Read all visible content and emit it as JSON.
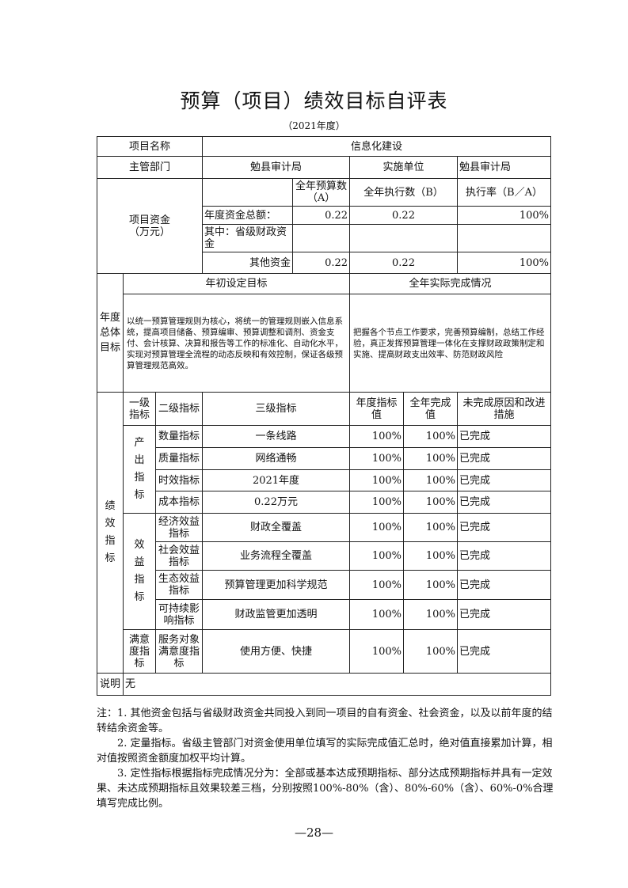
{
  "title": "预算（项目）绩效目标自评表",
  "subtitle": "（2021年度）",
  "project": {
    "name_label": "项目名称",
    "name_value": "信息化建设",
    "dept_label": "主管部门",
    "dept_value": "勉县审计局",
    "impl_label": "实施单位",
    "impl_value": "勉县审计局"
  },
  "funding": {
    "label": "项目资金（万元）",
    "headers": [
      "全年预算数（A）",
      "全年执行数（B）",
      "执行率（B／A）"
    ],
    "rows": [
      {
        "label": "年度资金总额：",
        "a": "0.22",
        "b": "0.22",
        "rate": "100%"
      },
      {
        "label": "其中：省级财政资金",
        "a": "",
        "b": "",
        "rate": ""
      },
      {
        "label": "其他资金",
        "a": "0.22",
        "b": "0.22",
        "rate": "100%"
      }
    ]
  },
  "goals": {
    "label": "年度总体目标",
    "target_header": "年初设定目标",
    "actual_header": "全年实际完成情况",
    "target_text": "以统一预算管理规则为核心，将统一的管理规则嵌入信息系统，提高项目储备、预算编审、预算调整和调剂、资金支付、会计核算、决算和报告等工作的标准化、自动化水平，实现对预算管理全流程的动态反映和有效控制，保证各级预算管理规范高效。",
    "actual_text": "把握各个节点工作要求，完善预算编制，总结工作经验，真正发挥预算管理一体化在支撑财政政策制定和实施、提高财政支出效率、防范财政风险"
  },
  "indicators": {
    "label": "绩效指标",
    "headers": [
      "一级指标",
      "二级指标",
      "三级指标",
      "年度指标值",
      "全年完成值",
      "未完成原因和改进措施"
    ],
    "groups": [
      {
        "level1": "产出指标",
        "rows": [
          {
            "level2": "数量指标",
            "level3": "一条线路",
            "target": "100%",
            "actual": "100%",
            "reason": "已完成"
          },
          {
            "level2": "质量指标",
            "level3": "网络通畅",
            "target": "100%",
            "actual": "100%",
            "reason": "已完成"
          },
          {
            "level2": "时效指标",
            "level3": "2021年度",
            "target": "100%",
            "actual": "100%",
            "reason": "已完成"
          },
          {
            "level2": "成本指标",
            "level3": "0.22万元",
            "target": "100%",
            "actual": "100%",
            "reason": "已完成"
          }
        ]
      },
      {
        "level1": "效益指标",
        "rows": [
          {
            "level2": "经济效益指标",
            "level3": "财政全覆盖",
            "target": "100%",
            "actual": "100%",
            "reason": "已完成"
          },
          {
            "level2": "社会效益指标",
            "level3": "业务流程全覆盖",
            "target": "100%",
            "actual": "100%",
            "reason": "已完成"
          },
          {
            "level2": "生态效益指标",
            "level3": "预算管理更加科学规范",
            "target": "100%",
            "actual": "100%",
            "reason": "已完成"
          },
          {
            "level2": "可持续影响指标",
            "level3": "财政监管更加透明",
            "target": "100%",
            "actual": "100%",
            "reason": "已完成"
          }
        ]
      },
      {
        "level1": "满意度指标",
        "rows": [
          {
            "level2": "服务对象满意度指标",
            "level3": "使用方便、快捷",
            "target": "100%",
            "actual": "100%",
            "reason": "已完成"
          }
        ]
      }
    ]
  },
  "remark": {
    "label": "说明",
    "value": "无"
  },
  "notes": [
    "注：1. 其他资金包括与省级财政资金共同投入到同一项目的自有资金、社会资金，以及以前年度的结转结余资金等。",
    "2. 定量指标。省级主管部门对资金使用单位填写的实际完成值汇总时，绝对值直接累加计算，相对值按照资金额度加权平均计算。",
    "3. 定性指标根据指标完成情况分为：全部或基本达成预期指标、部分达成预期指标并具有一定效果、未达成预期指标且效果较差三档，分别按照100%-80%（含）、80%-60%（含）、60%-0%合理填写完成比例。"
  ],
  "page_number": "—28—"
}
